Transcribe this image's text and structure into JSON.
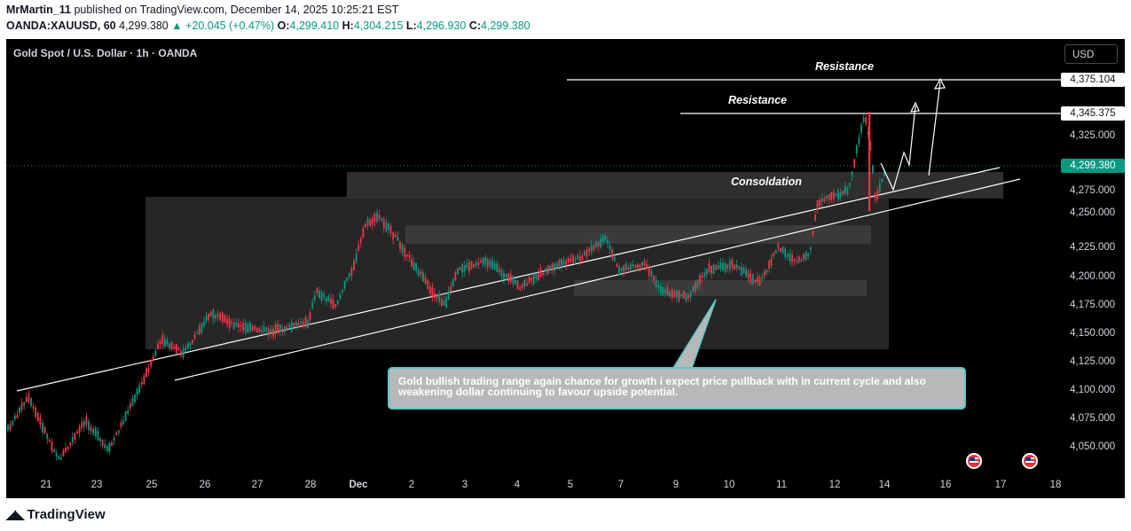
{
  "header": {
    "author": "MrMartin_11",
    "published_text": "published on TradingView.com, December 14, 2025 10:25:21 EST",
    "symbol_line": "OANDA:XAUUSD, 60",
    "last_price": "4,299.380",
    "change": "▲ +20.045 (+0.47%)",
    "o_label": "O:",
    "o_value": "4,299.410",
    "h_label": "H:",
    "h_value": "4,304.215",
    "l_label": "L:",
    "l_value": "4,296.930",
    "c_label": "C:",
    "c_value": "4,299.380"
  },
  "chart": {
    "symbol_title": "Gold Spot / U.S. Dollar · 1h · OANDA",
    "currency": "USD",
    "y_ticks": [
      "4,325.000",
      "4,275.000",
      "4,250.000",
      "4,225.000",
      "4,200.000",
      "4,175.000",
      "4,150.000",
      "4,125.000",
      "4,100.000",
      "4,075.000",
      "4,050.000"
    ],
    "price_labels": {
      "resistance_upper": "4,375.104",
      "resistance_lower": "4,345.375",
      "current": "4,299.380"
    },
    "x_ticks": [
      {
        "label": "21",
        "bold": false
      },
      {
        "label": "23",
        "bold": false
      },
      {
        "label": "25",
        "bold": false
      },
      {
        "label": "26",
        "bold": false
      },
      {
        "label": "27",
        "bold": false
      },
      {
        "label": "28",
        "bold": false
      },
      {
        "label": "Dec",
        "bold": true
      },
      {
        "label": "2",
        "bold": false
      },
      {
        "label": "3",
        "bold": false
      },
      {
        "label": "4",
        "bold": false
      },
      {
        "label": "5",
        "bold": false
      },
      {
        "label": "7",
        "bold": false
      },
      {
        "label": "9",
        "bold": false
      },
      {
        "label": "10",
        "bold": false
      },
      {
        "label": "11",
        "bold": false
      },
      {
        "label": "12",
        "bold": false
      },
      {
        "label": "14",
        "bold": false
      },
      {
        "label": "16",
        "bold": false
      },
      {
        "label": "17",
        "bold": false
      },
      {
        "label": "18",
        "bold": false
      }
    ],
    "annotations": {
      "resistance_1": "Resistance",
      "resistance_2": "Resistance",
      "consolidation": "Consoldation"
    },
    "note": "Gold bullish trading range again chance for growth i expect price pullback with in current cycle and also weakening dollar continuing to favour upside potential.",
    "colors": {
      "up": "#089981",
      "down": "#f23645",
      "background": "#000000"
    },
    "event_icons": [
      "us-flag-icon",
      "us-flag-icon"
    ]
  },
  "branding": {
    "logo_text": "TradingView"
  }
}
